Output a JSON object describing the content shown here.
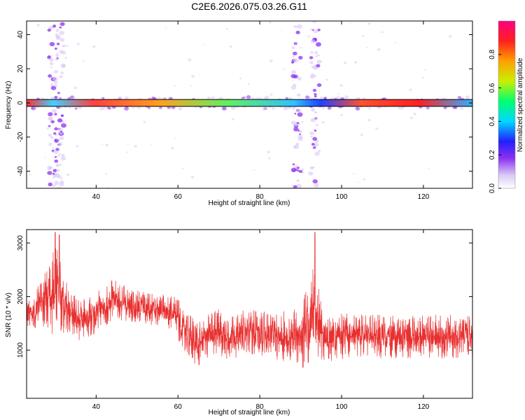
{
  "figure": {
    "title": "C2E6.2026.075.03.26.G11",
    "trace_color": "#e83030",
    "band_line_color": "#000000"
  },
  "chart_data": [
    {
      "type": "heatmap",
      "title": "",
      "xlabel": "Height of straight line (km)",
      "ylabel": "Frequency (Hz)",
      "xlim": [
        23,
        132
      ],
      "ylim": [
        -50,
        48
      ],
      "xticks": [
        "40",
        "60",
        "80",
        "100",
        "120"
      ],
      "xtick_values": [
        40,
        60,
        80,
        100,
        120
      ],
      "yticks": [
        "40",
        "20",
        "0",
        "-20",
        "-40"
      ],
      "ytick_values": [
        40,
        20,
        0,
        -20,
        -40
      ],
      "main_band": {
        "frequency": 0,
        "from_km": 23,
        "to_km": 132,
        "half_width_hz": 2
      },
      "spread_features_km": [
        29.5,
        31,
        89,
        93.5
      ],
      "colorbar": {
        "label": "Normalized spectral amplitude",
        "min": 0.0,
        "max": 1.0,
        "ticks": [
          "0.0",
          "0.2",
          "0.4",
          "0.6",
          "0.8"
        ],
        "tick_values": [
          0.0,
          0.2,
          0.4,
          0.6,
          0.8
        ],
        "colors": [
          "#ffffff",
          "#d9c8f5",
          "#8c30f0",
          "#2020ff",
          "#00d8ff",
          "#00ff70",
          "#c8f000",
          "#ffa000",
          "#ff2020",
          "#ff0080"
        ]
      }
    },
    {
      "type": "line",
      "title": "",
      "xlabel": "Height of straight line (km)",
      "ylabel": "SNR (10 * v/v)",
      "xlim": [
        23,
        132
      ],
      "ylim": [
        100,
        3250
      ],
      "xticks": [
        "40",
        "60",
        "80",
        "100",
        "120"
      ],
      "xtick_values": [
        40,
        60,
        80,
        100,
        120
      ],
      "yticks": [
        "3000",
        "2000",
        "1000"
      ],
      "ytick_values": [
        3000,
        2000,
        1000
      ],
      "series": [
        {
          "name": "SNR",
          "x": [
            23,
            25,
            27,
            28,
            29,
            30,
            31,
            32,
            33,
            34,
            36,
            38,
            40,
            42,
            43,
            44,
            46,
            48,
            50,
            52,
            54,
            56,
            58,
            59,
            60,
            61,
            62,
            64,
            65,
            66,
            68,
            70,
            72,
            75,
            78,
            80,
            82,
            85,
            88,
            90,
            91,
            92,
            93,
            94,
            95,
            96,
            98,
            100,
            102,
            104,
            106,
            108,
            110,
            112,
            115,
            118,
            120,
            122,
            125,
            128,
            130,
            132
          ],
          "mean": [
            1650,
            1750,
            1900,
            1950,
            2000,
            2050,
            2000,
            1900,
            1800,
            1700,
            1550,
            1600,
            1700,
            1800,
            1880,
            1950,
            1900,
            1850,
            1800,
            1780,
            1750,
            1720,
            1700,
            1680,
            1550,
            1450,
            1350,
            1150,
            1100,
            1180,
            1300,
            1350,
            1250,
            1300,
            1350,
            1300,
            1280,
            1260,
            1250,
            1300,
            1400,
            1500,
            1600,
            1500,
            1350,
            1250,
            1200,
            1250,
            1300,
            1250,
            1280,
            1250,
            1260,
            1250,
            1240,
            1250,
            1260,
            1250,
            1260,
            1250,
            1240,
            1250
          ],
          "spread": [
            300,
            350,
            450,
            600,
            800,
            900,
            800,
            650,
            500,
            420,
            380,
            380,
            380,
            380,
            380,
            380,
            350,
            320,
            320,
            320,
            320,
            320,
            330,
            340,
            400,
            420,
            400,
            450,
            470,
            450,
            420,
            430,
            430,
            430,
            430,
            430,
            430,
            450,
            520,
            650,
            800,
            900,
            950,
            800,
            600,
            480,
            420,
            430,
            430,
            400,
            400,
            400,
            420,
            400,
            400,
            400,
            400,
            400,
            420,
            400,
            400,
            400
          ],
          "peaks": [
            {
              "x": 30,
              "y": 3200
            },
            {
              "x": 31,
              "y": 3150
            },
            {
              "x": 93.5,
              "y": 3200
            }
          ]
        }
      ]
    }
  ]
}
